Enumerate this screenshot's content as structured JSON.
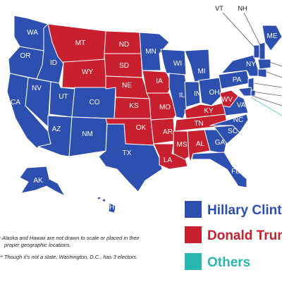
{
  "colors": {
    "clinton": "#2c4fb0",
    "trump": "#c8202f",
    "other": "#2ab7b0",
    "border": "#ffffff"
  },
  "states": [
    {
      "abbr": "WA",
      "color": "clinton"
    },
    {
      "abbr": "OR",
      "color": "clinton"
    },
    {
      "abbr": "CA",
      "color": "clinton"
    },
    {
      "abbr": "NV",
      "color": "clinton"
    },
    {
      "abbr": "ID",
      "color": "clinton"
    },
    {
      "abbr": "MT",
      "color": "trump"
    },
    {
      "abbr": "WY",
      "color": "trump"
    },
    {
      "abbr": "UT",
      "color": "clinton"
    },
    {
      "abbr": "AZ",
      "color": "clinton"
    },
    {
      "abbr": "CO",
      "color": "clinton"
    },
    {
      "abbr": "NM",
      "color": "clinton"
    },
    {
      "abbr": "ND",
      "color": "trump"
    },
    {
      "abbr": "SD",
      "color": "trump"
    },
    {
      "abbr": "NE",
      "color": "trump"
    },
    {
      "abbr": "KS",
      "color": "trump"
    },
    {
      "abbr": "OK",
      "color": "trump"
    },
    {
      "abbr": "TX",
      "color": "clinton"
    },
    {
      "abbr": "MN",
      "color": "clinton"
    },
    {
      "abbr": "IA",
      "color": "trump"
    },
    {
      "abbr": "MO",
      "color": "trump"
    },
    {
      "abbr": "AR",
      "color": "trump"
    },
    {
      "abbr": "LA",
      "color": "trump"
    },
    {
      "abbr": "WI",
      "color": "clinton"
    },
    {
      "abbr": "IL",
      "color": "clinton"
    },
    {
      "abbr": "MI",
      "color": "clinton"
    },
    {
      "abbr": "IN",
      "color": "clinton"
    },
    {
      "abbr": "OH",
      "color": "clinton"
    },
    {
      "abbr": "KY",
      "color": "trump"
    },
    {
      "abbr": "TN",
      "color": "trump"
    },
    {
      "abbr": "MS",
      "color": "trump"
    },
    {
      "abbr": "AL",
      "color": "trump"
    },
    {
      "abbr": "GA",
      "color": "clinton"
    },
    {
      "abbr": "FL",
      "color": "clinton"
    },
    {
      "abbr": "SC",
      "color": "clinton"
    },
    {
      "abbr": "NC",
      "color": "clinton"
    },
    {
      "abbr": "VA",
      "color": "clinton"
    },
    {
      "abbr": "WV",
      "color": "trump"
    },
    {
      "abbr": "PA",
      "color": "clinton"
    },
    {
      "abbr": "NY",
      "color": "clinton"
    },
    {
      "abbr": "ME",
      "color": "clinton"
    },
    {
      "abbr": "VT",
      "color": "clinton"
    },
    {
      "abbr": "NH",
      "color": "clinton"
    },
    {
      "abbr": "AK",
      "color": "clinton"
    },
    {
      "abbr": "HI",
      "color": "clinton"
    }
  ],
  "callouts": {
    "vt": "VT",
    "nh": "NH"
  },
  "legend": [
    {
      "label": "Hillary Clinton",
      "color": "clinton"
    },
    {
      "label": "Donald Trump",
      "color": "trump"
    },
    {
      "label": "Others",
      "color": "other"
    }
  ],
  "footnotes": [
    "* Alaska and Hawaii are not drawn to scale or placed in their",
    "proper geographic locations.",
    "** Though it's not a state, Washington, D.C., has 3 electors."
  ]
}
